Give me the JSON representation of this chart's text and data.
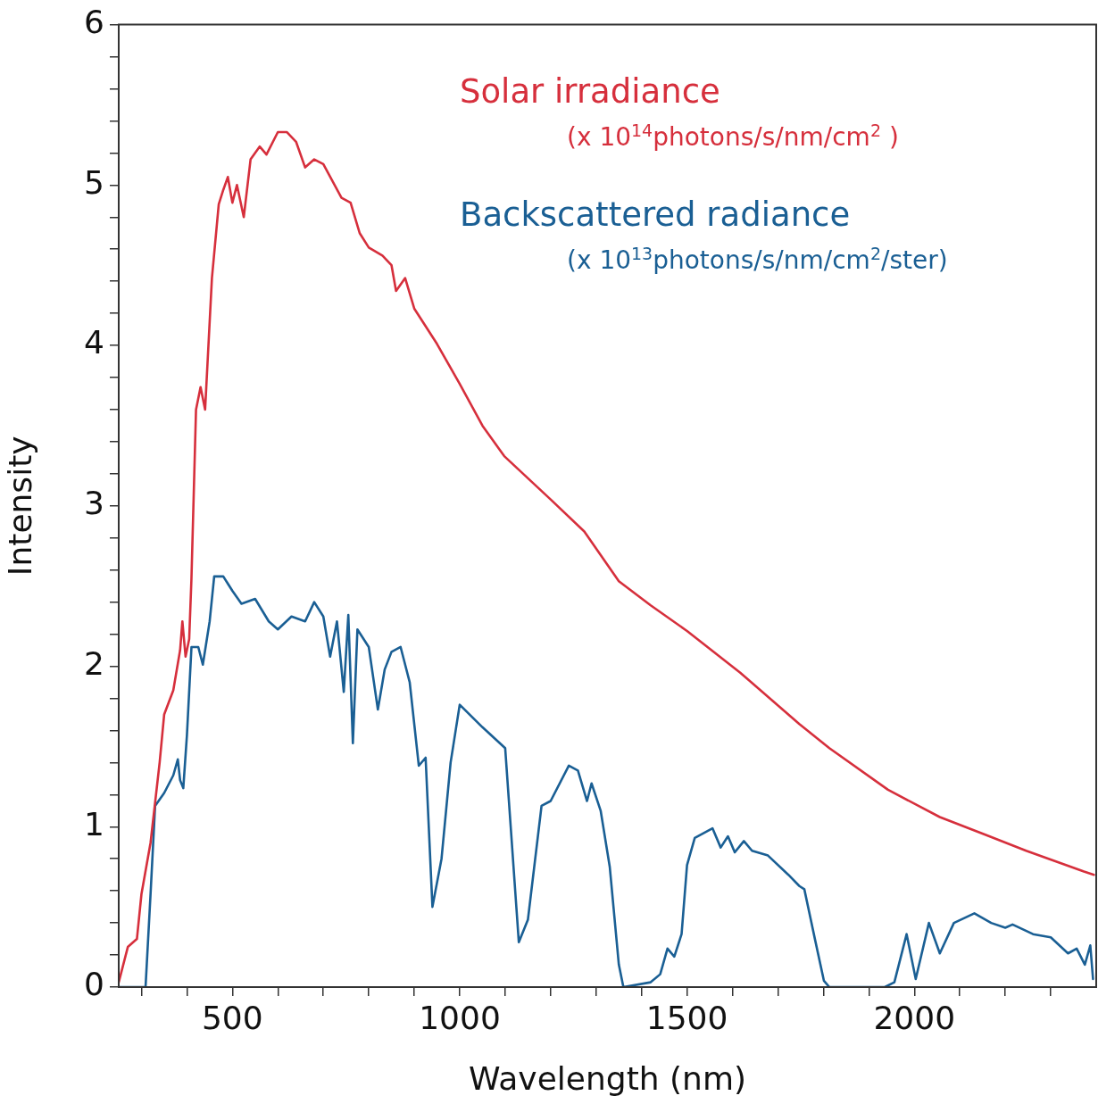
{
  "chart_data": {
    "type": "line",
    "xlabel": "Wavelength (nm)",
    "ylabel": "Intensity",
    "annotations": [
      "(x 10$^{14}$photons/s/nm/cm$^{2}$ )",
      "(x 10$^{13}$photons/s/nm/cm$^{2}$/ster)"
    ],
    "xlim": [
      250,
      2400
    ],
    "xticks": [
      {
        "value": 300,
        "label": null
      },
      {
        "value": 400,
        "label": null
      },
      500,
      {
        "value": 600,
        "label": null
      },
      {
        "value": 700,
        "label": null
      },
      {
        "value": 800,
        "label": null
      },
      {
        "value": 900,
        "label": null
      },
      1000,
      {
        "value": 1100,
        "label": null
      },
      {
        "value": 1200,
        "label": null
      },
      {
        "value": 1300,
        "label": null
      },
      {
        "value": 1400,
        "label": null
      },
      1500,
      {
        "value": 1600,
        "label": null
      },
      {
        "value": 1700,
        "label": null
      },
      {
        "value": 1800,
        "label": null
      },
      {
        "value": 1900,
        "label": null
      },
      2000,
      {
        "value": 2100,
        "label": null
      },
      {
        "value": 2200,
        "label": null
      },
      {
        "value": 2300,
        "label": null
      }
    ],
    "ylim": [
      0,
      6
    ],
    "yticks": [
      0,
      {
        "value": 0.2,
        "label": null
      },
      {
        "value": 0.4,
        "label": null
      },
      {
        "value": 0.6,
        "label": null
      },
      {
        "value": 0.8,
        "label": null
      },
      1,
      {
        "value": 1.2,
        "label": null
      },
      {
        "value": 1.4,
        "label": null
      },
      {
        "value": 1.6,
        "label": null
      },
      {
        "value": 1.8,
        "label": null
      },
      2,
      {
        "value": 2.2,
        "label": null
      },
      {
        "value": 2.4,
        "label": null
      },
      {
        "value": 2.6,
        "label": null
      },
      {
        "value": 2.8,
        "label": null
      },
      3,
      {
        "value": 3.2,
        "label": null
      },
      {
        "value": 3.4,
        "label": null
      },
      {
        "value": 3.6,
        "label": null
      },
      {
        "value": 3.8,
        "label": null
      },
      4,
      {
        "value": 4.2,
        "label": null
      },
      {
        "value": 4.4,
        "label": null
      },
      {
        "value": 4.6,
        "label": null
      },
      {
        "value": 4.8,
        "label": null
      },
      5,
      {
        "value": 5.2,
        "label": null
      },
      {
        "value": 5.4,
        "label": null
      },
      {
        "value": 5.6,
        "label": null
      },
      {
        "value": 5.8,
        "label": null
      },
      6
    ],
    "marker": "none",
    "line_style": "solid",
    "series": [
      {
        "name": "Solar irradiance",
        "color": "#d62f3c",
        "x": [
          250,
          270,
          290,
          300,
          320,
          340,
          350,
          370,
          385,
          390,
          397,
          405,
          410,
          420,
          430,
          440,
          455,
          470,
          480,
          490,
          500,
          510,
          525,
          540,
          560,
          575,
          600,
          620,
          640,
          660,
          680,
          700,
          740,
          760,
          780,
          800,
          830,
          850,
          860,
          880,
          900,
          950,
          1000,
          1050,
          1098,
          1200,
          1274,
          1350,
          1420,
          1500,
          1617,
          1747,
          1813,
          1942,
          2056,
          2156,
          2246,
          2373,
          2395
        ],
        "values": [
          0.03,
          0.25,
          0.3,
          0.58,
          0.9,
          1.4,
          1.7,
          1.85,
          2.1,
          2.28,
          2.06,
          2.17,
          2.55,
          3.6,
          3.74,
          3.6,
          4.42,
          4.88,
          4.97,
          5.05,
          4.89,
          5.0,
          4.8,
          5.16,
          5.24,
          5.19,
          5.33,
          5.33,
          5.27,
          5.11,
          5.16,
          5.13,
          4.92,
          4.89,
          4.7,
          4.61,
          4.56,
          4.5,
          4.34,
          4.42,
          4.23,
          4.01,
          3.76,
          3.5,
          3.31,
          3.04,
          2.84,
          2.53,
          2.38,
          2.22,
          1.96,
          1.64,
          1.49,
          1.23,
          1.06,
          0.95,
          0.85,
          0.72,
          0.7
        ]
      },
      {
        "name": "Backscattered radiance",
        "color": "#1a5f94",
        "x": [
          250,
          309,
          320,
          330,
          350,
          370,
          380,
          385,
          392,
          400,
          410,
          425,
          435,
          450,
          460,
          480,
          500,
          520,
          550,
          580,
          600,
          630,
          660,
          680,
          700,
          715,
          730,
          745,
          755,
          765,
          775,
          800,
          820,
          835,
          850,
          870,
          890,
          910,
          925,
          940,
          960,
          980,
          1000,
          1050,
          1100,
          1130,
          1150,
          1180,
          1200,
          1240,
          1260,
          1280,
          1290,
          1310,
          1330,
          1350,
          1360,
          1420,
          1441,
          1457,
          1472,
          1488,
          1500,
          1517,
          1556,
          1574,
          1590,
          1605,
          1625,
          1643,
          1678,
          1723,
          1747,
          1758,
          1782,
          1801,
          1813,
          1935,
          1956,
          1983,
          2003,
          2032,
          2056,
          2087,
          2132,
          2169,
          2200,
          2216,
          2261,
          2300,
          2338,
          2357,
          2375,
          2387,
          2393
        ],
        "values": [
          0,
          0,
          0.58,
          1.13,
          1.21,
          1.32,
          1.42,
          1.29,
          1.24,
          1.57,
          2.12,
          2.12,
          2.01,
          2.28,
          2.56,
          2.56,
          2.47,
          2.39,
          2.42,
          2.28,
          2.23,
          2.31,
          2.28,
          2.4,
          2.31,
          2.06,
          2.28,
          1.84,
          2.32,
          1.52,
          2.23,
          2.12,
          1.73,
          1.98,
          2.09,
          2.12,
          1.9,
          1.38,
          1.43,
          0.5,
          0.8,
          1.4,
          1.76,
          1.62,
          1.49,
          0.28,
          0.42,
          1.13,
          1.16,
          1.38,
          1.35,
          1.16,
          1.27,
          1.1,
          0.75,
          0.14,
          0,
          0.03,
          0.08,
          0.24,
          0.19,
          0.33,
          0.76,
          0.93,
          0.99,
          0.87,
          0.94,
          0.84,
          0.91,
          0.85,
          0.82,
          0.7,
          0.63,
          0.61,
          0.29,
          0.04,
          0,
          0,
          0.03,
          0.33,
          0.05,
          0.4,
          0.21,
          0.4,
          0.46,
          0.4,
          0.37,
          0.39,
          0.33,
          0.31,
          0.21,
          0.24,
          0.14,
          0.26,
          0.05
        ]
      }
    ]
  }
}
